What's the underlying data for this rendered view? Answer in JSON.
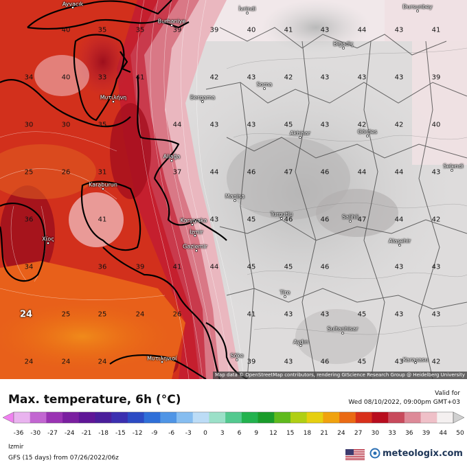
{
  "map": {
    "attribution": "Map data © OpenStreetMap contributors, rendering GIScience Research Group @ Heidelberg University",
    "cities": [
      {
        "name": "Ayvacık"
      },
      {
        "name": "İvrindi"
      },
      {
        "name": "Burhaniye"
      },
      {
        "name": "Bigadiç"
      },
      {
        "name": "Dursunbey"
      },
      {
        "name": "Soma"
      },
      {
        "name": "Μυτιλήνη"
      },
      {
        "name": "Bergama"
      },
      {
        "name": "Akhisar"
      },
      {
        "name": "Gördes"
      },
      {
        "name": "Aliağa"
      },
      {
        "name": "Karaburun"
      },
      {
        "name": "Manisa"
      },
      {
        "name": "Selendi"
      },
      {
        "name": "Turgutlu"
      },
      {
        "name": "Salihli"
      },
      {
        "name": "Karşıyaka"
      },
      {
        "name": "İzmir"
      },
      {
        "name": "Gaziemir"
      },
      {
        "name": "Χίος"
      },
      {
        "name": "Alaşehir"
      },
      {
        "name": "Tire"
      },
      {
        "name": "Sultanhisar"
      },
      {
        "name": "Aydın"
      },
      {
        "name": "Söke"
      },
      {
        "name": "Karacasu"
      },
      {
        "name": "Μυτιληνιοί"
      }
    ],
    "values": [
      {
        "v": "40"
      },
      {
        "v": "35"
      },
      {
        "v": "35"
      },
      {
        "v": "39"
      },
      {
        "v": "39"
      },
      {
        "v": "40"
      },
      {
        "v": "41"
      },
      {
        "v": "43"
      },
      {
        "v": "44"
      },
      {
        "v": "43"
      },
      {
        "v": "41"
      },
      {
        "v": "34"
      },
      {
        "v": "40"
      },
      {
        "v": "33"
      },
      {
        "v": "41"
      },
      {
        "v": "42"
      },
      {
        "v": "43"
      },
      {
        "v": "42"
      },
      {
        "v": "43"
      },
      {
        "v": "43"
      },
      {
        "v": "43"
      },
      {
        "v": "39"
      },
      {
        "v": "30"
      },
      {
        "v": "30"
      },
      {
        "v": "35"
      },
      {
        "v": "44"
      },
      {
        "v": "43"
      },
      {
        "v": "43"
      },
      {
        "v": "45"
      },
      {
        "v": "43"
      },
      {
        "v": "42"
      },
      {
        "v": "42"
      },
      {
        "v": "40"
      },
      {
        "v": "25"
      },
      {
        "v": "26"
      },
      {
        "v": "31"
      },
      {
        "v": "37"
      },
      {
        "v": "44"
      },
      {
        "v": "46"
      },
      {
        "v": "47"
      },
      {
        "v": "46"
      },
      {
        "v": "44"
      },
      {
        "v": "44"
      },
      {
        "v": "43"
      },
      {
        "v": "36"
      },
      {
        "v": "41"
      },
      {
        "v": "43"
      },
      {
        "v": "45"
      },
      {
        "v": "46"
      },
      {
        "v": "46"
      },
      {
        "v": "47"
      },
      {
        "v": "44"
      },
      {
        "v": "42"
      },
      {
        "v": "34"
      },
      {
        "v": "36"
      },
      {
        "v": "39"
      },
      {
        "v": "41"
      },
      {
        "v": "44"
      },
      {
        "v": "45"
      },
      {
        "v": "45"
      },
      {
        "v": "46"
      },
      {
        "v": "43"
      },
      {
        "v": "43"
      },
      {
        "v": "24",
        "big": true
      },
      {
        "v": "25"
      },
      {
        "v": "25"
      },
      {
        "v": "24"
      },
      {
        "v": "26"
      },
      {
        "v": "41"
      },
      {
        "v": "43"
      },
      {
        "v": "43"
      },
      {
        "v": "45"
      },
      {
        "v": "43"
      },
      {
        "v": "43"
      },
      {
        "v": "24"
      },
      {
        "v": "24"
      },
      {
        "v": "24"
      },
      {
        "v": "39"
      },
      {
        "v": "43"
      },
      {
        "v": "46"
      },
      {
        "v": "45"
      },
      {
        "v": "43"
      },
      {
        "v": "42"
      }
    ]
  },
  "title": "Max. temperature, 6h (°C)",
  "valid_label": "Valid for",
  "valid_time": "Wed 08/10/2022, 09:00pm GMT+03",
  "legend": {
    "ticks": [
      "-36",
      "-30",
      "-27",
      "-24",
      "-21",
      "-18",
      "-15",
      "-12",
      "-9",
      "-6",
      "-3",
      "0",
      "3",
      "6",
      "9",
      "12",
      "15",
      "18",
      "21",
      "24",
      "27",
      "30",
      "33",
      "36",
      "39",
      "44",
      "50"
    ],
    "colors": [
      "#e9b3ef",
      "#c266d1",
      "#9a33b3",
      "#7a1fa0",
      "#5f1697",
      "#4a1e9b",
      "#3b2fb0",
      "#2c4bc4",
      "#2f6fd8",
      "#4f95e6",
      "#86bdf0",
      "#bcdcf6",
      "#9be0c8",
      "#53c98f",
      "#22b24e",
      "#1a9c2a",
      "#5fba1d",
      "#b0cf14",
      "#e6cf10",
      "#f0a20e",
      "#ea6a14",
      "#d8301b",
      "#b80d1e",
      "#c84a5c",
      "#dd8a98",
      "#efc0c8",
      "#f4f0f0"
    ],
    "arrow_left_color": "#f080f0",
    "arrow_right_color": "#d0d0d0"
  },
  "region": "Izmir",
  "model_info": "GFS (15 days) from  07/26/2022/06z",
  "brand": "meteologix.com"
}
